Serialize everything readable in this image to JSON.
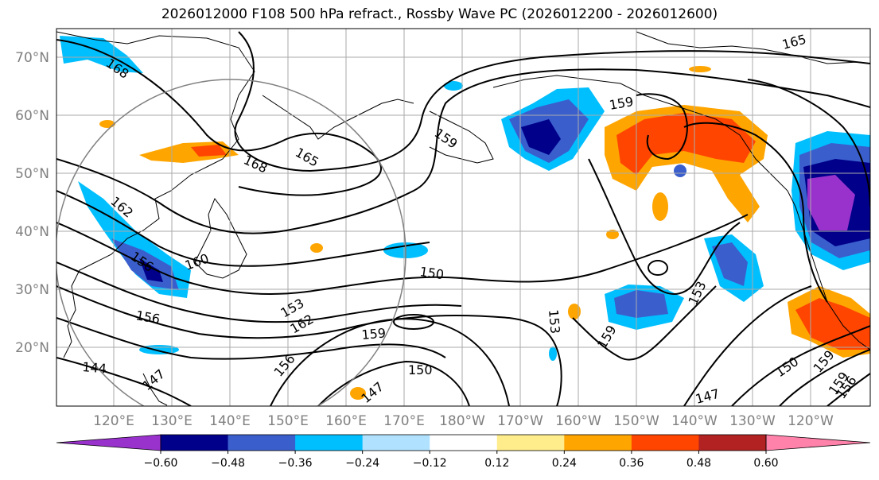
{
  "title": "2026012000 F108 500 hPa refract., Rossby Wave PC (2026012200 - 2026012600)",
  "lat_labels": [
    "70°N",
    "60°N",
    "50°N",
    "40°N",
    "30°N",
    "20°N"
  ],
  "lon_labels": [
    "120°E",
    "130°E",
    "140°E",
    "150°E",
    "160°E",
    "170°E",
    "180°W",
    "170°W",
    "160°W",
    "150°W",
    "140°W",
    "130°W",
    "120°W"
  ],
  "colorbar": {
    "colors": [
      "#9932cc",
      "#00008b",
      "#3a5fcd",
      "#00bfff",
      "#b0e2ff",
      "#ffffff",
      "#ffec8b",
      "#ffa500",
      "#ff4500",
      "#b22222",
      "#ff82ab"
    ],
    "ticks": [
      "−0.60",
      "−0.48",
      "−0.36",
      "−0.24",
      "−0.12",
      "0.12",
      "0.24",
      "0.36",
      "0.48",
      "0.60"
    ]
  },
  "contour_labels": [
    "168",
    "165",
    "168",
    "165",
    "159",
    "159",
    "162",
    "156",
    "160",
    "156",
    "144",
    "147",
    "153",
    "162",
    "156",
    "159",
    "150",
    "150",
    "153",
    "159",
    "153",
    "147",
    "150",
    "159",
    "156",
    "159",
    "147"
  ]
}
